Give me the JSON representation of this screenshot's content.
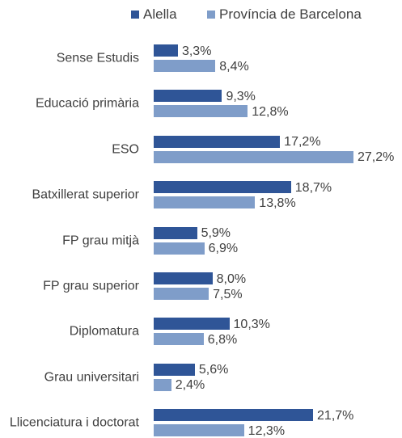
{
  "chart_data": {
    "type": "bar",
    "orientation": "horizontal",
    "categories": [
      "Sense Estudis",
      "Educació primària",
      "ESO",
      "Batxillerat superior",
      "FP grau mitjà",
      "FP grau superior",
      "Diplomatura",
      "Grau universitari",
      "Llicenciatura i doctorat"
    ],
    "series": [
      {
        "name": "Alella",
        "color": "#2f5597",
        "values": [
          3.3,
          9.3,
          17.2,
          18.7,
          5.9,
          8.0,
          10.3,
          5.6,
          21.7
        ],
        "value_labels": [
          "3,3%",
          "9,3%",
          "17,2%",
          "18,7%",
          "5,9%",
          "8,0%",
          "10,3%",
          "5,6%",
          "21,7%"
        ]
      },
      {
        "name": "Província de Barcelona",
        "color": "#7f9dc9",
        "values": [
          8.4,
          12.8,
          27.2,
          13.8,
          6.9,
          7.5,
          6.8,
          2.4,
          12.3
        ],
        "value_labels": [
          "8,4%",
          "12,8%",
          "27,2%",
          "13,8%",
          "6,9%",
          "7,5%",
          "6,8%",
          "2,4%",
          "12,3%"
        ]
      }
    ],
    "legend": "top"
  }
}
